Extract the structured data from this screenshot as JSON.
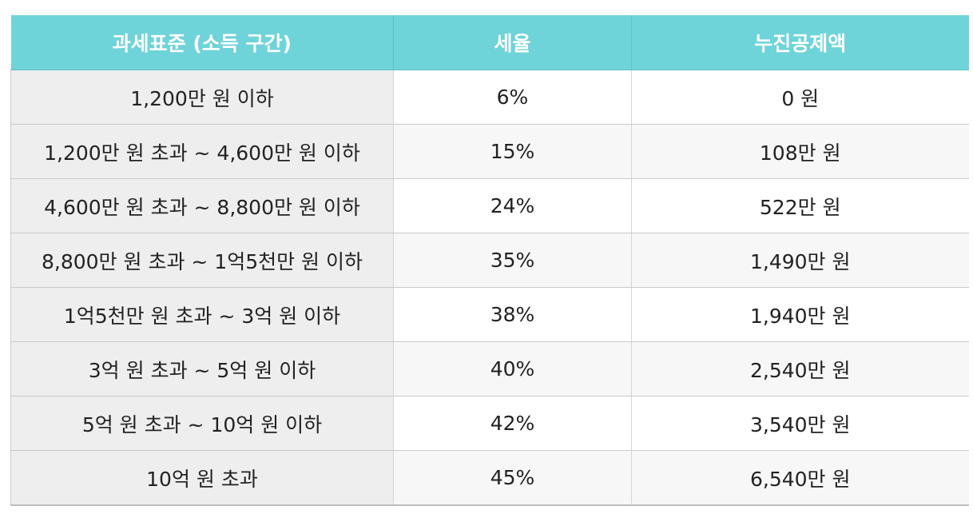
{
  "table": {
    "headers": [
      "과세표준 (소득 구간)",
      "세율",
      "누진공제액"
    ],
    "rows": [
      {
        "bracket": "1,200만 원 이하",
        "rate": "6%",
        "deduction": "0 원"
      },
      {
        "bracket": "1,200만 원 초과 ~ 4,600만 원 이하",
        "rate": "15%",
        "deduction": "108만 원"
      },
      {
        "bracket": "4,600만 원 초과 ~ 8,800만 원 이하",
        "rate": "24%",
        "deduction": "522만 원"
      },
      {
        "bracket": "8,800만 원 초과 ~ 1억5천만 원 이하",
        "rate": "35%",
        "deduction": "1,490만 원"
      },
      {
        "bracket": "1억5천만 원 초과 ~ 3억 원 이하",
        "rate": "38%",
        "deduction": "1,940만 원"
      },
      {
        "bracket": "3억 원 초과 ~ 5억 원 이하",
        "rate": "40%",
        "deduction": "2,540만 원"
      },
      {
        "bracket": "5억 원 초과 ~ 10억 원 이하",
        "rate": "42%",
        "deduction": "3,540만 원"
      },
      {
        "bracket": "10억 원 초과",
        "rate": "45%",
        "deduction": "6,540만 원"
      }
    ]
  },
  "colors": {
    "header_bg": "#6fd3da",
    "header_text": "#ffffff",
    "first_column_bg": "#eeeeee",
    "row_alt_bg": "#f7f7f7"
  }
}
